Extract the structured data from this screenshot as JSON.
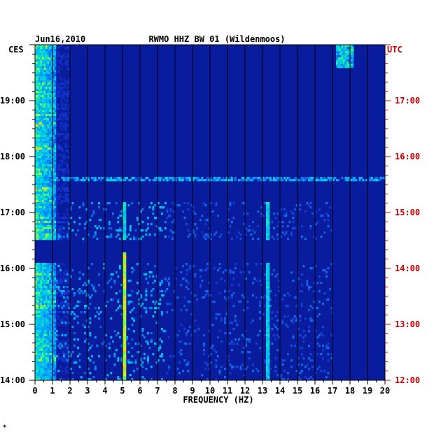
{
  "chart_data": {
    "type": "heatmap",
    "title_left": "Jun16,2010",
    "title_center": "RWMO HHZ BW 01 (Wildenmoos)",
    "left_zone_label": "CES",
    "right_zone_label": "UTC",
    "xlabel": "FREQUENCY (HZ)",
    "xlim": [
      0,
      20
    ],
    "x_ticks": [
      "0",
      "1",
      "2",
      "3",
      "4",
      "5",
      "6",
      "7",
      "8",
      "9",
      "10",
      "11",
      "12",
      "13",
      "14",
      "15",
      "16",
      "17",
      "18",
      "19",
      "20"
    ],
    "y_left_ticks": [
      {
        "label": "14:00",
        "hour": 14
      },
      {
        "label": "15:00",
        "hour": 15
      },
      {
        "label": "16:00",
        "hour": 16
      },
      {
        "label": "17:00",
        "hour": 17
      },
      {
        "label": "18:00",
        "hour": 18
      },
      {
        "label": "19:00",
        "hour": 19
      }
    ],
    "y_right_ticks": [
      {
        "label": "12:00",
        "hour": 14
      },
      {
        "label": "13:00",
        "hour": 15
      },
      {
        "label": "14:00",
        "hour": 16
      },
      {
        "label": "15:00",
        "hour": 17
      },
      {
        "label": "16:00",
        "hour": 18
      },
      {
        "label": "17:00",
        "hour": 19
      }
    ],
    "time_range_ces": [
      14,
      20
    ],
    "data_gap_ces": [
      16.1,
      16.5
    ],
    "freq_lines_hz": [
      5.1,
      13.3
    ],
    "broadband_event_ces": 17.6,
    "grid": true,
    "colors": {
      "background": "#0a1c9e",
      "grid": "#000000",
      "left_labels": "#000000",
      "right_labels": "#cc0000"
    },
    "footer_mark": "*"
  }
}
